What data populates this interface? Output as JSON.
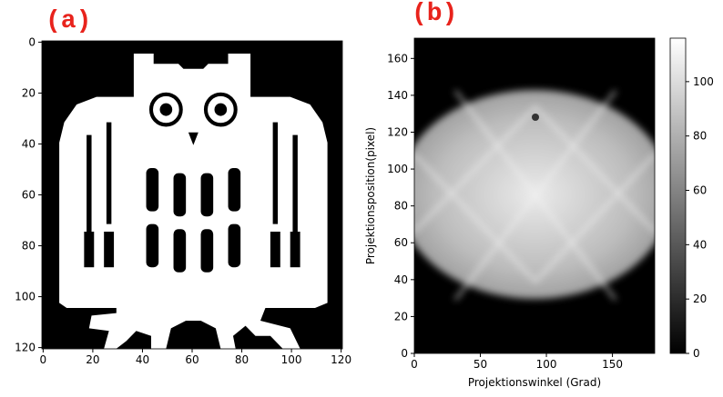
{
  "chart_data": [
    {
      "type": "image",
      "title": "(a)",
      "title_color": "#e8231c",
      "xlim": [
        -0.5,
        120.5
      ],
      "ylim": [
        120.5,
        -0.5
      ],
      "xticks": [
        0,
        20,
        40,
        60,
        80,
        100,
        120
      ],
      "yticks": [
        0,
        20,
        40,
        60,
        80,
        100,
        120
      ]
    },
    {
      "type": "image",
      "title": "(b)",
      "title_color": "#e8231c",
      "xlabel": "Projektionswinkel (Grad)",
      "ylabel": "Projektionsposition(pixel)",
      "xlim": [
        0,
        182
      ],
      "ylim": [
        0,
        171
      ],
      "xticks": [
        0,
        50,
        100,
        150
      ],
      "yticks": [
        0,
        20,
        40,
        60,
        80,
        100,
        120,
        140,
        160
      ],
      "colorbar": {
        "lim": [
          0,
          116
        ],
        "ticks": [
          0,
          20,
          40,
          60,
          80,
          100
        ]
      }
    }
  ]
}
